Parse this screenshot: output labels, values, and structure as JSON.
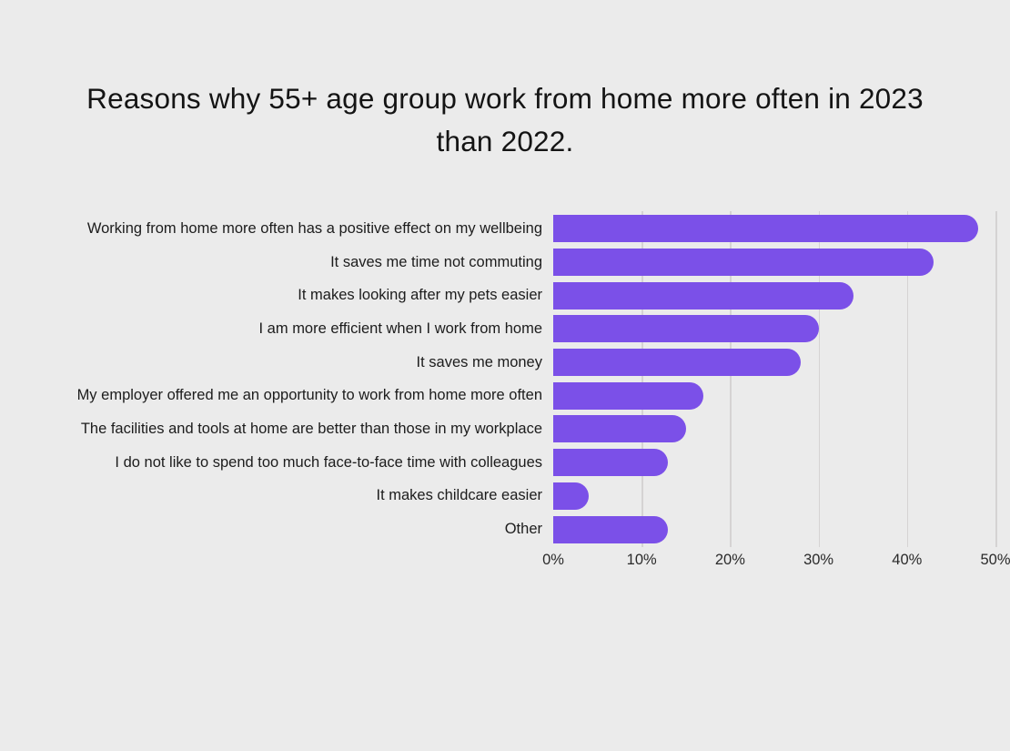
{
  "title": {
    "text": "Reasons why 55+ age group work from home more often in 2023 than 2022.",
    "lines": [
      "Reasons why 55+ age group work from home more often in 2023",
      "than 2022."
    ]
  },
  "colors": {
    "background": "#ebebeb",
    "bar": "#7b50e8",
    "gridline": "#d5d3d3",
    "title_text": "#141414",
    "label_text": "#1c1c1c",
    "tick_text": "#2a2a2a"
  },
  "chart_data": {
    "type": "bar",
    "orientation": "horizontal",
    "title": "Reasons why 55+ age group work from home more often in 2023 than 2022.",
    "categories": [
      "Working from home more often has a positive effect on my wellbeing",
      "It saves me time not commuting",
      "It makes looking after my pets easier",
      "I am more efficient when I work from home",
      "It saves me money",
      "My employer offered me an opportunity to work from home more often",
      "The facilities and tools at home are better than those in my workplace",
      "I do not like to spend too much face-to-face time with colleagues",
      "It makes childcare easier",
      "Other"
    ],
    "values": [
      48,
      43,
      34,
      30,
      28,
      17,
      15,
      13,
      4,
      13
    ],
    "unit": "%",
    "xlabel": "",
    "ylabel": "",
    "xlim": [
      0,
      50
    ],
    "x_tick_values": [
      0,
      10,
      20,
      30,
      40,
      50
    ],
    "x_tick_labels": [
      "0%",
      "10%",
      "20%",
      "30%",
      "40%",
      "50%"
    ],
    "grid": "vertical",
    "legend": "none",
    "bar_color": "#7b50e8"
  }
}
